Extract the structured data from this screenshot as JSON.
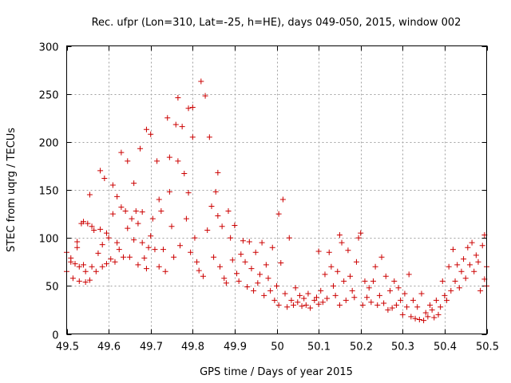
{
  "chart_data": {
    "type": "scatter",
    "title": "Rec. ufpr (Lon=310, Lat=-25, h=HE), days 049-050, 2015, window 002",
    "xlabel": "GPS time / Days of year 2015",
    "ylabel": "STEC from uqrg / TECUs",
    "xlim": [
      49.5,
      50.5
    ],
    "ylim": [
      0,
      300
    ],
    "x_ticks": [
      "49.5",
      "49.6",
      "49.7",
      "49.8",
      "49.9",
      "50",
      "50.1",
      "50.2",
      "50.3",
      "50.4",
      "50.5"
    ],
    "x_tick_values": [
      49.5,
      49.6,
      49.7,
      49.8,
      49.9,
      50.0,
      50.1,
      50.2,
      50.3,
      50.4,
      50.5
    ],
    "y_ticks": [
      "0",
      "50",
      "100",
      "150",
      "200",
      "250",
      "300"
    ],
    "y_tick_values": [
      0,
      50,
      100,
      150,
      200,
      250,
      300
    ],
    "grid": true,
    "marker_color": "#cc0000",
    "marker": "plus",
    "points": [
      [
        49.5,
        85
      ],
      [
        49.5,
        65
      ],
      [
        49.51,
        79
      ],
      [
        49.51,
        75
      ],
      [
        49.515,
        58
      ],
      [
        49.52,
        73
      ],
      [
        49.525,
        96
      ],
      [
        49.525,
        90
      ],
      [
        49.53,
        55
      ],
      [
        49.53,
        70
      ],
      [
        49.535,
        115
      ],
      [
        49.54,
        117
      ],
      [
        49.54,
        72
      ],
      [
        49.545,
        54
      ],
      [
        49.545,
        65
      ],
      [
        49.55,
        115
      ],
      [
        49.555,
        145
      ],
      [
        49.555,
        56
      ],
      [
        49.56,
        112
      ],
      [
        49.56,
        70
      ],
      [
        49.565,
        108
      ],
      [
        49.57,
        65
      ],
      [
        49.575,
        84
      ],
      [
        49.58,
        109
      ],
      [
        49.58,
        170
      ],
      [
        49.585,
        93
      ],
      [
        49.585,
        70
      ],
      [
        49.59,
        162
      ],
      [
        49.595,
        105
      ],
      [
        49.595,
        73
      ],
      [
        49.6,
        100
      ],
      [
        49.605,
        78
      ],
      [
        49.61,
        155
      ],
      [
        49.61,
        125
      ],
      [
        49.615,
        75
      ],
      [
        49.62,
        143
      ],
      [
        49.62,
        95
      ],
      [
        49.625,
        88
      ],
      [
        49.63,
        132
      ],
      [
        49.63,
        189
      ],
      [
        49.635,
        80
      ],
      [
        49.64,
        128
      ],
      [
        49.645,
        180
      ],
      [
        49.645,
        110
      ],
      [
        49.65,
        80
      ],
      [
        49.655,
        120
      ],
      [
        49.66,
        157
      ],
      [
        49.66,
        98
      ],
      [
        49.665,
        128
      ],
      [
        49.67,
        72
      ],
      [
        49.67,
        115
      ],
      [
        49.675,
        193
      ],
      [
        49.68,
        127
      ],
      [
        49.68,
        95
      ],
      [
        49.685,
        79
      ],
      [
        49.69,
        213
      ],
      [
        49.69,
        68
      ],
      [
        49.695,
        90
      ],
      [
        49.7,
        208
      ],
      [
        49.7,
        102
      ],
      [
        49.705,
        120
      ],
      [
        49.71,
        88
      ],
      [
        49.715,
        180
      ],
      [
        49.72,
        140
      ],
      [
        49.72,
        70
      ],
      [
        49.725,
        128
      ],
      [
        49.73,
        88
      ],
      [
        49.735,
        65
      ],
      [
        49.74,
        225
      ],
      [
        49.745,
        184
      ],
      [
        49.745,
        148
      ],
      [
        49.75,
        112
      ],
      [
        49.755,
        80
      ],
      [
        49.76,
        218
      ],
      [
        49.765,
        246
      ],
      [
        49.765,
        180
      ],
      [
        49.77,
        92
      ],
      [
        49.775,
        216
      ],
      [
        49.78,
        167
      ],
      [
        49.785,
        120
      ],
      [
        49.79,
        235
      ],
      [
        49.79,
        147
      ],
      [
        49.795,
        85
      ],
      [
        49.8,
        205
      ],
      [
        49.8,
        236
      ],
      [
        49.805,
        100
      ],
      [
        49.81,
        75
      ],
      [
        49.815,
        66
      ],
      [
        49.82,
        263
      ],
      [
        49.825,
        60
      ],
      [
        49.83,
        248
      ],
      [
        49.835,
        108
      ],
      [
        49.84,
        205
      ],
      [
        49.845,
        133
      ],
      [
        49.85,
        80
      ],
      [
        49.855,
        148
      ],
      [
        49.86,
        168
      ],
      [
        49.86,
        123
      ],
      [
        49.865,
        70
      ],
      [
        49.87,
        112
      ],
      [
        49.875,
        58
      ],
      [
        49.88,
        53
      ],
      [
        49.885,
        128
      ],
      [
        49.89,
        100
      ],
      [
        49.895,
        77
      ],
      [
        49.9,
        113
      ],
      [
        49.905,
        63
      ],
      [
        49.91,
        55
      ],
      [
        49.915,
        83
      ],
      [
        49.92,
        97
      ],
      [
        49.925,
        75
      ],
      [
        49.93,
        49
      ],
      [
        49.935,
        96
      ],
      [
        49.94,
        68
      ],
      [
        49.945,
        45
      ],
      [
        49.95,
        85
      ],
      [
        49.955,
        53
      ],
      [
        49.96,
        62
      ],
      [
        49.965,
        95
      ],
      [
        49.97,
        40
      ],
      [
        49.975,
        72
      ],
      [
        49.98,
        58
      ],
      [
        49.985,
        45
      ],
      [
        49.99,
        90
      ],
      [
        49.995,
        35
      ],
      [
        50.0,
        50
      ],
      [
        50.005,
        125
      ],
      [
        50.005,
        30
      ],
      [
        50.01,
        74
      ],
      [
        50.015,
        140
      ],
      [
        50.02,
        42
      ],
      [
        50.025,
        28
      ],
      [
        50.03,
        100
      ],
      [
        50.035,
        35
      ],
      [
        50.04,
        30
      ],
      [
        50.045,
        48
      ],
      [
        50.05,
        33
      ],
      [
        50.055,
        40
      ],
      [
        50.06,
        29
      ],
      [
        50.065,
        37
      ],
      [
        50.07,
        30
      ],
      [
        50.075,
        42
      ],
      [
        50.08,
        27
      ],
      [
        50.09,
        35
      ],
      [
        50.095,
        38
      ],
      [
        50.1,
        86
      ],
      [
        50.1,
        31
      ],
      [
        50.105,
        45
      ],
      [
        50.11,
        33
      ],
      [
        50.115,
        62
      ],
      [
        50.12,
        37
      ],
      [
        50.125,
        85
      ],
      [
        50.13,
        70
      ],
      [
        50.135,
        50
      ],
      [
        50.14,
        40
      ],
      [
        50.145,
        65
      ],
      [
        50.15,
        103
      ],
      [
        50.15,
        30
      ],
      [
        50.155,
        95
      ],
      [
        50.16,
        55
      ],
      [
        50.165,
        35
      ],
      [
        50.17,
        87
      ],
      [
        50.175,
        60
      ],
      [
        50.18,
        45
      ],
      [
        50.185,
        38
      ],
      [
        50.19,
        75
      ],
      [
        50.195,
        100
      ],
      [
        50.2,
        105
      ],
      [
        50.205,
        30
      ],
      [
        50.21,
        55
      ],
      [
        50.215,
        38
      ],
      [
        50.22,
        48
      ],
      [
        50.225,
        33
      ],
      [
        50.23,
        55
      ],
      [
        50.235,
        70
      ],
      [
        50.24,
        30
      ],
      [
        50.245,
        40
      ],
      [
        50.25,
        80
      ],
      [
        50.255,
        32
      ],
      [
        50.26,
        60
      ],
      [
        50.265,
        25
      ],
      [
        50.27,
        45
      ],
      [
        50.275,
        27
      ],
      [
        50.28,
        55
      ],
      [
        50.285,
        30
      ],
      [
        50.29,
        48
      ],
      [
        50.295,
        35
      ],
      [
        50.3,
        20
      ],
      [
        50.305,
        42
      ],
      [
        50.31,
        28
      ],
      [
        50.315,
        62
      ],
      [
        50.32,
        18
      ],
      [
        50.325,
        35
      ],
      [
        50.33,
        16
      ],
      [
        50.335,
        28
      ],
      [
        50.34,
        15
      ],
      [
        50.345,
        42
      ],
      [
        50.35,
        14
      ],
      [
        50.355,
        22
      ],
      [
        50.36,
        18
      ],
      [
        50.365,
        30
      ],
      [
        50.37,
        25
      ],
      [
        50.375,
        17
      ],
      [
        50.38,
        35
      ],
      [
        50.385,
        20
      ],
      [
        50.39,
        28
      ],
      [
        50.395,
        55
      ],
      [
        50.4,
        40
      ],
      [
        50.405,
        35
      ],
      [
        50.41,
        70
      ],
      [
        50.415,
        45
      ],
      [
        50.42,
        88
      ],
      [
        50.425,
        55
      ],
      [
        50.43,
        72
      ],
      [
        50.435,
        48
      ],
      [
        50.44,
        65
      ],
      [
        50.445,
        78
      ],
      [
        50.45,
        58
      ],
      [
        50.455,
        90
      ],
      [
        50.46,
        72
      ],
      [
        50.465,
        95
      ],
      [
        50.47,
        65
      ],
      [
        50.475,
        82
      ],
      [
        50.48,
        75
      ],
      [
        50.485,
        45
      ],
      [
        50.49,
        92
      ],
      [
        50.495,
        103
      ],
      [
        50.495,
        57
      ],
      [
        50.5,
        70
      ],
      [
        50.5,
        50
      ]
    ]
  }
}
